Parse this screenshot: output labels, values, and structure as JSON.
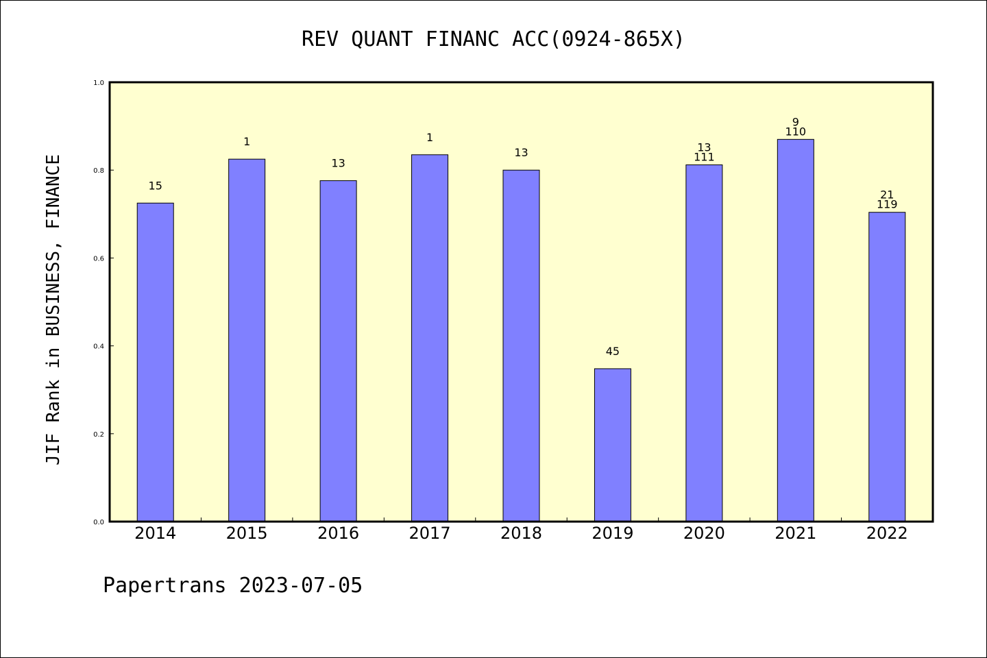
{
  "chart_data": {
    "type": "bar",
    "title": "REV QUANT FINANC ACC(0924-865X)",
    "ylabel": "JIF Rank in BUSINESS, FINANCE",
    "xlabel": "",
    "ylim": [
      0,
      1.0
    ],
    "yticks": [
      "0.0",
      "0.2",
      "0.4",
      "0.6",
      "0.8",
      "1.0"
    ],
    "categories": [
      "2014",
      "2015",
      "2016",
      "2017",
      "2018",
      "2019",
      "2020",
      "2021",
      "2022"
    ],
    "values": [
      0.725,
      0.825,
      0.776,
      0.835,
      0.8,
      0.348,
      0.812,
      0.87,
      0.704
    ],
    "data_labels": [
      [
        "15"
      ],
      [
        "1"
      ],
      [
        "13"
      ],
      [
        "1"
      ],
      [
        "13"
      ],
      [
        "45"
      ],
      [
        "13",
        "111"
      ],
      [
        "9",
        "110"
      ],
      [
        "21",
        "119"
      ]
    ],
    "grid": false,
    "colors": {
      "plot_background": "#ffffd0",
      "bar_fill": "#8080ff",
      "bar_stroke": "#000000"
    }
  },
  "footer": "Papertrans 2023-07-05"
}
